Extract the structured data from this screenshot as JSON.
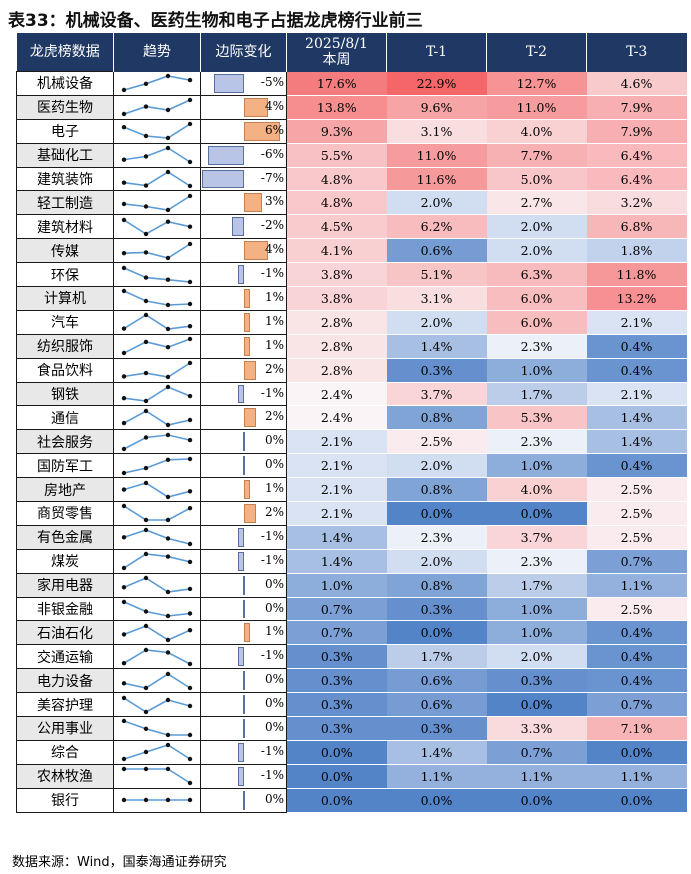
{
  "title": "表33：机械设备、医药生物和电子占据龙虎榜行业前三",
  "headers": {
    "name": "龙虎榜数据",
    "trend": "趋势",
    "delta": "边际变化",
    "current": "2025/8/1\n本周",
    "t1": "T-1",
    "t2": "T-2",
    "t3": "T-3"
  },
  "source": "数据来源：Wind，国泰海通证券研究",
  "rows": [
    {
      "name": "机械设备",
      "delta": "-5%",
      "delta_value": -5,
      "vals": [
        "17.6%",
        "22.9%",
        "12.7%",
        "4.6%"
      ],
      "v": [
        17.6,
        22.9,
        12.7,
        4.6
      ]
    },
    {
      "name": "医药生物",
      "delta": "4%",
      "delta_value": 4,
      "vals": [
        "13.8%",
        "9.6%",
        "11.0%",
        "7.9%"
      ],
      "v": [
        13.8,
        9.6,
        11.0,
        7.9
      ]
    },
    {
      "name": "电子",
      "delta": "6%",
      "delta_value": 6,
      "vals": [
        "9.3%",
        "3.1%",
        "4.0%",
        "7.9%"
      ],
      "v": [
        9.3,
        3.1,
        4.0,
        7.9
      ]
    },
    {
      "name": "基础化工",
      "delta": "-6%",
      "delta_value": -6,
      "vals": [
        "5.5%",
        "11.0%",
        "7.7%",
        "6.4%"
      ],
      "v": [
        5.5,
        11.0,
        7.7,
        6.4
      ]
    },
    {
      "name": "建筑装饰",
      "delta": "-7%",
      "delta_value": -7,
      "vals": [
        "4.8%",
        "11.6%",
        "5.0%",
        "6.4%"
      ],
      "v": [
        4.8,
        11.6,
        5.0,
        6.4
      ]
    },
    {
      "name": "轻工制造",
      "delta": "3%",
      "delta_value": 3,
      "vals": [
        "4.8%",
        "2.0%",
        "2.7%",
        "3.2%"
      ],
      "v": [
        4.8,
        2.0,
        2.7,
        3.2
      ]
    },
    {
      "name": "建筑材料",
      "delta": "-2%",
      "delta_value": -2,
      "vals": [
        "4.5%",
        "6.2%",
        "2.0%",
        "6.8%"
      ],
      "v": [
        4.5,
        6.2,
        2.0,
        6.8
      ]
    },
    {
      "name": "传媒",
      "delta": "4%",
      "delta_value": 4,
      "vals": [
        "4.1%",
        "0.6%",
        "2.0%",
        "1.8%"
      ],
      "v": [
        4.1,
        0.6,
        2.0,
        1.8
      ]
    },
    {
      "name": "环保",
      "delta": "-1%",
      "delta_value": -1,
      "vals": [
        "3.8%",
        "5.1%",
        "6.3%",
        "11.8%"
      ],
      "v": [
        3.8,
        5.1,
        6.3,
        11.8
      ]
    },
    {
      "name": "计算机",
      "delta": "1%",
      "delta_value": 1,
      "vals": [
        "3.8%",
        "3.1%",
        "6.0%",
        "13.2%"
      ],
      "v": [
        3.8,
        3.1,
        6.0,
        13.2
      ]
    },
    {
      "name": "汽车",
      "delta": "1%",
      "delta_value": 1,
      "vals": [
        "2.8%",
        "2.0%",
        "6.0%",
        "2.1%"
      ],
      "v": [
        2.8,
        2.0,
        6.0,
        2.1
      ]
    },
    {
      "name": "纺织服饰",
      "delta": "1%",
      "delta_value": 1,
      "vals": [
        "2.8%",
        "1.4%",
        "2.3%",
        "0.4%"
      ],
      "v": [
        2.8,
        1.4,
        2.3,
        0.4
      ]
    },
    {
      "name": "食品饮料",
      "delta": "2%",
      "delta_value": 2,
      "vals": [
        "2.8%",
        "0.3%",
        "1.0%",
        "0.4%"
      ],
      "v": [
        2.8,
        0.3,
        1.0,
        0.4
      ]
    },
    {
      "name": "钢铁",
      "delta": "-1%",
      "delta_value": -1,
      "vals": [
        "2.4%",
        "3.7%",
        "1.7%",
        "2.1%"
      ],
      "v": [
        2.4,
        3.7,
        1.7,
        2.1
      ]
    },
    {
      "name": "通信",
      "delta": "2%",
      "delta_value": 2,
      "vals": [
        "2.4%",
        "0.8%",
        "5.3%",
        "1.4%"
      ],
      "v": [
        2.4,
        0.8,
        5.3,
        1.4
      ]
    },
    {
      "name": "社会服务",
      "delta": "0%",
      "delta_value": 0,
      "vals": [
        "2.1%",
        "2.5%",
        "2.3%",
        "1.4%"
      ],
      "v": [
        2.1,
        2.5,
        2.3,
        1.4
      ]
    },
    {
      "name": "国防军工",
      "delta": "0%",
      "delta_value": 0,
      "vals": [
        "2.1%",
        "2.0%",
        "1.0%",
        "0.4%"
      ],
      "v": [
        2.1,
        2.0,
        1.0,
        0.4
      ]
    },
    {
      "name": "房地产",
      "delta": "1%",
      "delta_value": 1,
      "vals": [
        "2.1%",
        "0.8%",
        "4.0%",
        "2.5%"
      ],
      "v": [
        2.1,
        0.8,
        4.0,
        2.5
      ]
    },
    {
      "name": "商贸零售",
      "delta": "2%",
      "delta_value": 2,
      "vals": [
        "2.1%",
        "0.0%",
        "0.0%",
        "2.5%"
      ],
      "v": [
        2.1,
        0.0,
        0.0,
        2.5
      ]
    },
    {
      "name": "有色金属",
      "delta": "-1%",
      "delta_value": -1,
      "vals": [
        "1.4%",
        "2.3%",
        "3.7%",
        "2.5%"
      ],
      "v": [
        1.4,
        2.3,
        3.7,
        2.5
      ]
    },
    {
      "name": "煤炭",
      "delta": "-1%",
      "delta_value": -1,
      "vals": [
        "1.4%",
        "2.0%",
        "2.3%",
        "0.7%"
      ],
      "v": [
        1.4,
        2.0,
        2.3,
        0.7
      ]
    },
    {
      "name": "家用电器",
      "delta": "0%",
      "delta_value": 0,
      "vals": [
        "1.0%",
        "0.8%",
        "1.7%",
        "1.1%"
      ],
      "v": [
        1.0,
        0.8,
        1.7,
        1.1
      ]
    },
    {
      "name": "非银金融",
      "delta": "0%",
      "delta_value": 0,
      "vals": [
        "0.7%",
        "0.3%",
        "1.0%",
        "2.5%"
      ],
      "v": [
        0.7,
        0.3,
        1.0,
        2.5
      ]
    },
    {
      "name": "石油石化",
      "delta": "1%",
      "delta_value": 1,
      "vals": [
        "0.7%",
        "0.0%",
        "1.0%",
        "0.4%"
      ],
      "v": [
        0.7,
        0.0,
        1.0,
        0.4
      ]
    },
    {
      "name": "交通运输",
      "delta": "-1%",
      "delta_value": -1,
      "vals": [
        "0.3%",
        "1.7%",
        "2.0%",
        "0.4%"
      ],
      "v": [
        0.3,
        1.7,
        2.0,
        0.4
      ]
    },
    {
      "name": "电力设备",
      "delta": "0%",
      "delta_value": 0,
      "vals": [
        "0.3%",
        "0.6%",
        "0.3%",
        "0.4%"
      ],
      "v": [
        0.3,
        0.6,
        0.3,
        0.4
      ]
    },
    {
      "name": "美容护理",
      "delta": "0%",
      "delta_value": 0,
      "vals": [
        "0.3%",
        "0.6%",
        "0.0%",
        "0.7%"
      ],
      "v": [
        0.3,
        0.6,
        0.0,
        0.7
      ]
    },
    {
      "name": "公用事业",
      "delta": "0%",
      "delta_value": 0,
      "vals": [
        "0.3%",
        "0.3%",
        "3.3%",
        "7.1%"
      ],
      "v": [
        0.3,
        0.3,
        3.3,
        7.1
      ]
    },
    {
      "name": "综合",
      "delta": "-1%",
      "delta_value": -1,
      "vals": [
        "0.0%",
        "1.4%",
        "0.7%",
        "0.0%"
      ],
      "v": [
        0.0,
        1.4,
        0.7,
        0.0
      ]
    },
    {
      "name": "农林牧渔",
      "delta": "-1%",
      "delta_value": -1,
      "vals": [
        "0.0%",
        "1.1%",
        "1.1%",
        "1.1%"
      ],
      "v": [
        0.0,
        1.1,
        1.1,
        1.1
      ]
    },
    {
      "name": "银行",
      "delta": "0%",
      "delta_value": 0,
      "vals": [
        "0.0%",
        "0.0%",
        "0.0%",
        "0.0%"
      ],
      "v": [
        0.0,
        0.0,
        0.0,
        0.0
      ]
    }
  ]
}
